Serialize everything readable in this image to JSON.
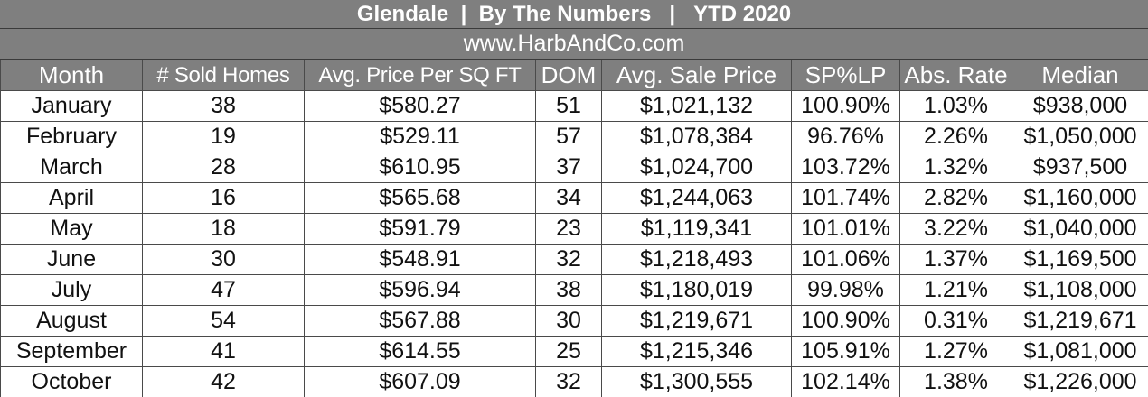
{
  "header": {
    "city": "Glendale",
    "sep1": "|",
    "subtitle": "By The Numbers",
    "sep2": "|",
    "period": "YTD 2020",
    "website": "www.HarbAndCo.com"
  },
  "chart_data": {
    "type": "table",
    "columns": [
      "Month",
      "# Sold Homes",
      "Avg. Price Per SQ FT",
      "DOM",
      "Avg. Sale Price",
      "SP%LP",
      "Abs. Rate",
      "Median"
    ],
    "rows": [
      [
        "January",
        "38",
        "$580.27",
        "51",
        "$1,021,132",
        "100.90%",
        "1.03%",
        "$938,000"
      ],
      [
        "February",
        "19",
        "$529.11",
        "57",
        "$1,078,384",
        "96.76%",
        "2.26%",
        "$1,050,000"
      ],
      [
        "March",
        "28",
        "$610.95",
        "37",
        "$1,024,700",
        "103.72%",
        "1.32%",
        "$937,500"
      ],
      [
        "April",
        "16",
        "$565.68",
        "34",
        "$1,244,063",
        "101.74%",
        "2.82%",
        "$1,160,000"
      ],
      [
        "May",
        "18",
        "$591.79",
        "23",
        "$1,119,341",
        "101.01%",
        "3.22%",
        "$1,040,000"
      ],
      [
        "June",
        "30",
        "$548.91",
        "32",
        "$1,218,493",
        "101.06%",
        "1.37%",
        "$1,169,500"
      ],
      [
        "July",
        "47",
        "$596.94",
        "38",
        "$1,180,019",
        "99.98%",
        "1.21%",
        "$1,108,000"
      ],
      [
        "August",
        "54",
        "$567.88",
        "30",
        "$1,219,671",
        "100.90%",
        "0.31%",
        "$1,219,671"
      ],
      [
        "September",
        "41",
        "$614.55",
        "25",
        "$1,215,346",
        "105.91%",
        "1.27%",
        "$1,081,000"
      ],
      [
        "October",
        "42",
        "$607.09",
        "32",
        "$1,300,555",
        "102.14%",
        "1.38%",
        "$1,226,000"
      ]
    ]
  }
}
